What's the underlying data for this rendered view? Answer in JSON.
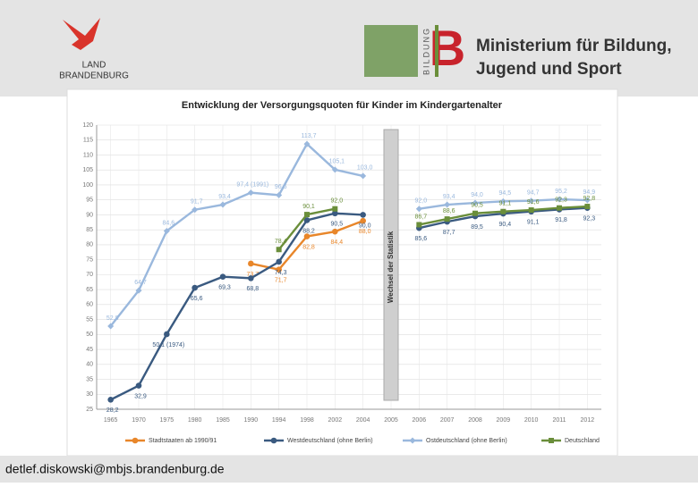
{
  "header": {
    "logo_left": [
      "LAND",
      "BRANDENBURG"
    ],
    "logo_vertical": "BILDUNG",
    "ministry": [
      "Ministerium für Bildung,",
      "Jugend und Sport"
    ]
  },
  "footer": {
    "email": "detlef.diskowski@mbjs.brandenburg.de"
  },
  "chart_data": {
    "type": "line",
    "title": "Entwicklung der Versorgungsquoten für Kinder im Kindergartenalter",
    "annotation": "Wechsel der Statistik",
    "categories": [
      "1965",
      "1970",
      "1975",
      "1980",
      "1985",
      "1990",
      "1994",
      "1998",
      "2002",
      "2004",
      "2005",
      "2006",
      "2007",
      "2008",
      "2009",
      "2010",
      "2011",
      "2012"
    ],
    "ylim": [
      25,
      120
    ],
    "yticks": [
      25,
      30,
      35,
      40,
      45,
      50,
      55,
      60,
      65,
      70,
      75,
      80,
      85,
      90,
      95,
      100,
      105,
      110,
      115,
      120
    ],
    "grid": true,
    "series": [
      {
        "name": "Stadtstaaten ab 1990/91",
        "color": "#e8862a",
        "values": [
          null,
          null,
          null,
          null,
          null,
          73.7,
          71.7,
          82.8,
          84.4,
          88.0,
          null,
          null,
          null,
          null,
          null,
          null,
          null,
          null
        ],
        "value_labels": [
          null,
          null,
          null,
          null,
          null,
          "73,7",
          "71,7",
          "82,8",
          "84,4",
          "88,0",
          null,
          null,
          null,
          null,
          null,
          null,
          null,
          null
        ]
      },
      {
        "name": "Westdeutschland (ohne Berlin)",
        "color": "#3a5a80",
        "values": [
          28.2,
          32.9,
          50.1,
          65.6,
          69.3,
          68.8,
          74.3,
          88.2,
          90.5,
          90.0,
          null,
          85.6,
          87.7,
          89.5,
          90.4,
          91.1,
          91.8,
          92.3
        ],
        "value_labels": [
          "28,2",
          "32,9",
          "50,1 (1974)",
          "65,6",
          "69,3",
          "68,8",
          "74,3",
          "88,2",
          "90,5",
          "90,0",
          null,
          "85,6",
          "87,7",
          "89,5",
          "90,4",
          "91,1",
          "91,8",
          "92,3"
        ]
      },
      {
        "name": "Ostdeutschland (ohne Berlin)",
        "color": "#9ab8dd",
        "values": [
          52.8,
          64.7,
          84.6,
          91.7,
          93.4,
          97.4,
          96.6,
          113.7,
          105.1,
          103.0,
          null,
          92.0,
          93.4,
          94.0,
          94.5,
          94.7,
          95.2,
          94.9
        ],
        "value_labels": [
          "52,8",
          "64,7",
          "84,6",
          "91,7",
          "93,4",
          "97,4 (1991)",
          "96,6",
          "113,7",
          "105,1",
          "103,0",
          null,
          "92,0",
          "93,4",
          "94,0",
          "94,5",
          "94,7",
          "95,2",
          "94,9"
        ]
      },
      {
        "name": "Deutschland",
        "color": "#6a8e3a",
        "values": [
          null,
          null,
          null,
          null,
          null,
          null,
          78.4,
          90.1,
          92.0,
          null,
          null,
          86.7,
          88.6,
          90.5,
          91.1,
          91.6,
          92.3,
          92.8
        ],
        "value_labels": [
          null,
          null,
          null,
          null,
          null,
          null,
          "78,4",
          "90,1",
          "92,0",
          null,
          null,
          "86,7",
          "88,6",
          "90,5",
          "91,1",
          "91,6",
          "92,3",
          "92,8"
        ]
      }
    ]
  }
}
